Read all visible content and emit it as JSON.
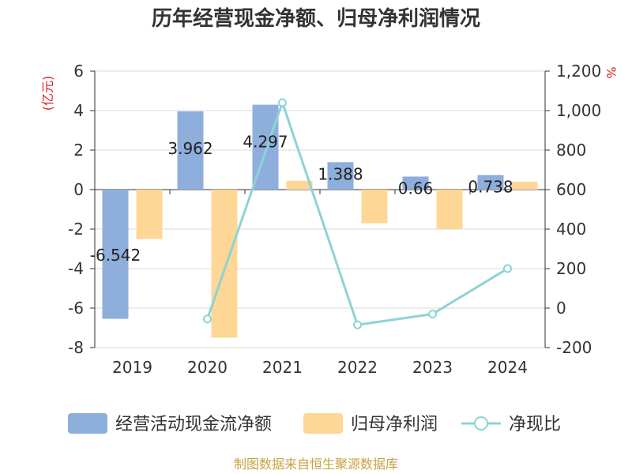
{
  "title": "历年经营现金净额、归母净利润情况",
  "source": "制图数据来自恒生聚源数据库",
  "colors": {
    "cash": "#8eaedc",
    "profit": "#fed796",
    "ratio": "#8dd3d6",
    "unit": "#e02020",
    "source": "#c8a040",
    "axis": "#333333",
    "grid": "#d9d9d9"
  },
  "chart_data": {
    "type": "bar",
    "categories": [
      "2019",
      "2020",
      "2021",
      "2022",
      "2023",
      "2024"
    ],
    "left_unit": "(亿元)",
    "right_unit": "%",
    "y_left": {
      "min": -8,
      "max": 6,
      "ticks": [
        6,
        4,
        2,
        0,
        -2,
        -4,
        -6,
        -8
      ],
      "tick_labels": [
        "6",
        "4",
        "2",
        "0",
        "-2",
        "-4",
        "-6",
        "-8"
      ]
    },
    "y_right": {
      "min": -200,
      "max": 1200,
      "ticks": [
        1200,
        1000,
        800,
        600,
        400,
        200,
        0,
        -200
      ],
      "tick_labels": [
        "1,200",
        "1,000",
        "800",
        "600",
        "400",
        "200",
        "0",
        "-200"
      ]
    },
    "series": [
      {
        "name": "经营活动现金流净额",
        "type": "bar",
        "axis": "left",
        "values": [
          -6.542,
          3.962,
          4.297,
          1.388,
          0.66,
          0.738
        ],
        "labels": [
          "-6.542",
          "3.962",
          "4.297",
          "1.388",
          "0.66",
          "0.738"
        ]
      },
      {
        "name": "归母净利润",
        "type": "bar",
        "axis": "left",
        "values": [
          -2.5,
          -7.5,
          0.45,
          -1.7,
          -2.0,
          0.4
        ]
      },
      {
        "name": "净现比",
        "type": "line",
        "axis": "right",
        "values": [
          null,
          -55,
          1040,
          -85,
          -30,
          200
        ]
      }
    ]
  }
}
